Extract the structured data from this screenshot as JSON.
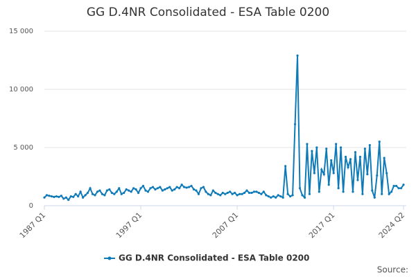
{
  "chart_data": {
    "type": "line",
    "title": "GG D.4NR Consolidated - ESA Table 0200",
    "source": "Source:",
    "categories": [
      "1987 Q1",
      null,
      null,
      null,
      null,
      null,
      null,
      null,
      null,
      null,
      null,
      null,
      null,
      null,
      null,
      null,
      null,
      null,
      null,
      null,
      null,
      null,
      null,
      null,
      null,
      null,
      null,
      null,
      null,
      null,
      null,
      null,
      null,
      null,
      null,
      null,
      null,
      null,
      null,
      null,
      "1997 Q1",
      null,
      null,
      null,
      null,
      null,
      null,
      null,
      null,
      null,
      null,
      null,
      null,
      null,
      null,
      null,
      null,
      null,
      null,
      null,
      null,
      null,
      null,
      null,
      null,
      null,
      null,
      null,
      null,
      null,
      null,
      null,
      null,
      null,
      null,
      null,
      null,
      null,
      null,
      null,
      "2007 Q1",
      null,
      null,
      null,
      null,
      null,
      null,
      null,
      null,
      null,
      null,
      null,
      null,
      null,
      null,
      null,
      null,
      null,
      null,
      null,
      null,
      null,
      null,
      null,
      null,
      null,
      null,
      null,
      null,
      null,
      null,
      null,
      null,
      null,
      null,
      null,
      null,
      null,
      null,
      null,
      "2017 Q1",
      null,
      null,
      null,
      null,
      null,
      null,
      null,
      null,
      null,
      null,
      null,
      null,
      null,
      null,
      null,
      null,
      null,
      null,
      null,
      null,
      null,
      null,
      null,
      null,
      null,
      null,
      null,
      null,
      "2024 Q2"
    ],
    "series": [
      {
        "name": "GG D.4NR Consolidated - ESA Table 0200",
        "color": "#0f7ab8",
        "values": [
          700,
          900,
          850,
          800,
          750,
          800,
          750,
          850,
          600,
          700,
          500,
          800,
          750,
          1000,
          800,
          1200,
          700,
          900,
          1100,
          1500,
          1000,
          900,
          1200,
          1300,
          1000,
          900,
          1300,
          1400,
          1100,
          1000,
          1200,
          1500,
          1000,
          1100,
          1400,
          1300,
          1200,
          1500,
          1400,
          1100,
          1500,
          1700,
          1300,
          1200,
          1500,
          1600,
          1400,
          1500,
          1600,
          1300,
          1400,
          1500,
          1600,
          1300,
          1400,
          1600,
          1500,
          1800,
          1600,
          1550,
          1600,
          1700,
          1400,
          1300,
          1000,
          1500,
          1600,
          1200,
          1000,
          900,
          1300,
          1100,
          1000,
          900,
          1100,
          1000,
          1100,
          1200,
          1000,
          1100,
          900,
          1000,
          1000,
          1100,
          1300,
          1100,
          1100,
          1200,
          1200,
          1100,
          1000,
          1200,
          900,
          800,
          700,
          800,
          700,
          900,
          800,
          700,
          3400,
          1000,
          800,
          900,
          7000,
          12900,
          1500,
          900,
          700,
          5300,
          1000,
          4700,
          2800,
          5000,
          1200,
          3100,
          2700,
          4900,
          1800,
          3900,
          2800,
          5300,
          1500,
          5000,
          1200,
          4200,
          3300,
          4000,
          1200,
          4600,
          2200,
          4200,
          1000,
          4900,
          2700,
          5200,
          1300,
          700,
          2600,
          5500,
          1000,
          4100,
          2800,
          1000,
          1200,
          1700,
          1700,
          1500,
          1500,
          1800
        ]
      }
    ],
    "ylim": [
      0,
      15000
    ],
    "yticks": [
      0,
      {
        "value": 5000,
        "label": "5 000"
      },
      {
        "value": 10000,
        "label": "10 000"
      },
      {
        "value": 15000,
        "label": "15 000"
      }
    ],
    "grid": true,
    "legend": "bottom"
  }
}
